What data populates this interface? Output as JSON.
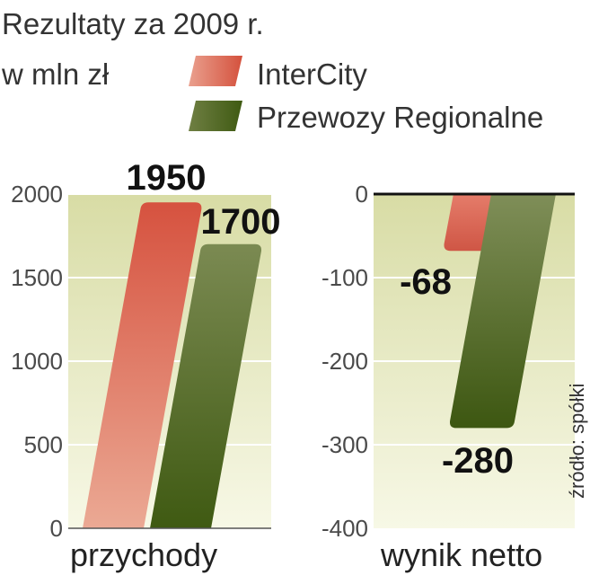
{
  "title": "Rezultaty za 2009 r.",
  "unit": "w mln zł",
  "source": "źródło: spółki",
  "colors": {
    "intercity": "#d9604f",
    "regionalne": "#4f6a1f",
    "panel_bg": "#eef0cf"
  },
  "chart_data": [
    {
      "type": "bar",
      "xlabel": "przychody",
      "ylim": [
        0,
        2000
      ],
      "yticks": [
        "0",
        "500",
        "1000",
        "1500",
        "2000"
      ],
      "series": [
        {
          "name": "InterCity",
          "value": 1950,
          "label": "1950"
        },
        {
          "name": "Przewozy Regionalne",
          "value": 1700,
          "label": "1700"
        }
      ]
    },
    {
      "type": "bar",
      "xlabel": "wynik netto",
      "ylim": [
        -400,
        0
      ],
      "yticks": [
        "0",
        "-100",
        "-200",
        "-300",
        "-400"
      ],
      "series": [
        {
          "name": "InterCity",
          "value": -68,
          "label": "-68"
        },
        {
          "name": "Przewozy Regionalne",
          "value": -280,
          "label": "-280"
        }
      ]
    }
  ]
}
